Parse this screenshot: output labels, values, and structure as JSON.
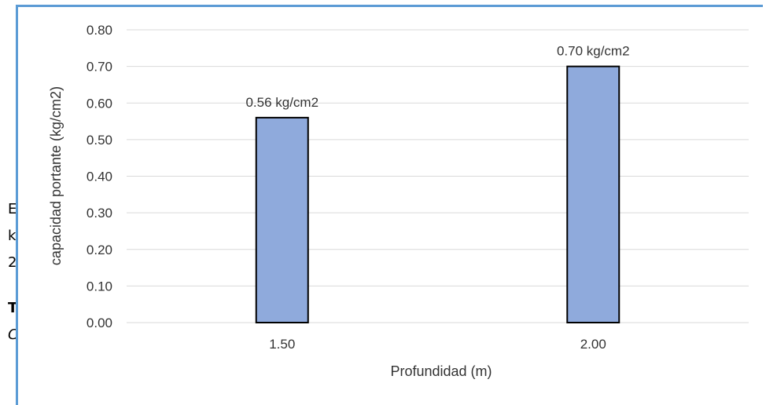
{
  "document_fragment": {
    "lines": [
      "E",
      "kg",
      "2"
    ],
    "bold_line": "T",
    "italic_line": "C"
  },
  "chart_data": {
    "type": "bar",
    "categories": [
      "1.50",
      "2.00"
    ],
    "values": [
      0.56,
      0.7
    ],
    "data_labels": [
      "0.56 kg/cm2",
      "0.70 kg/cm2"
    ],
    "xlabel": "Profundidad (m)",
    "ylabel": "capacidad portante (kg/cm2)",
    "ylim": [
      0,
      0.8
    ],
    "yticks": [
      "0.00",
      "0.10",
      "0.20",
      "0.30",
      "0.40",
      "0.50",
      "0.60",
      "0.70",
      "0.80"
    ],
    "grid": true,
    "bar_color": "#8faadc",
    "bar_edge_color": "#000000",
    "grid_color": "#d9d9d9"
  }
}
